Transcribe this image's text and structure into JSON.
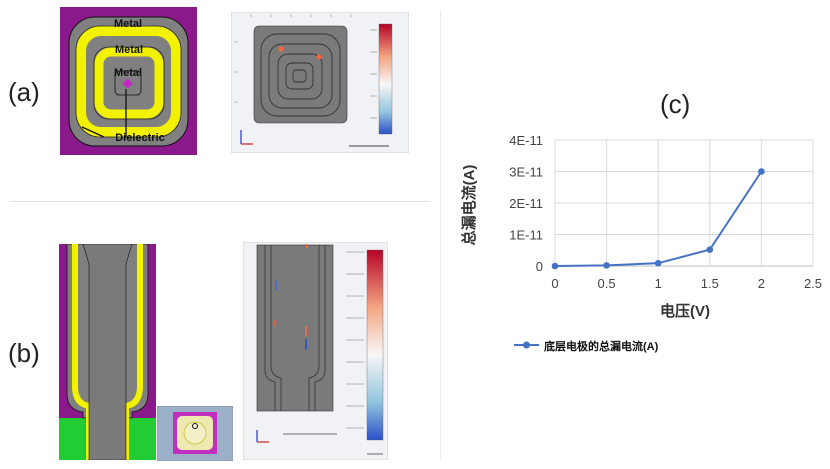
{
  "panels": {
    "a": {
      "label": "(a)",
      "layer_labels": [
        "Metal",
        "Metal",
        "Metal"
      ],
      "dielectric_label": "Dielectric"
    },
    "b": {
      "label": "(b)"
    },
    "c": {
      "label": "(c)"
    }
  },
  "colors": {
    "purple": "#8a1a8c",
    "yellow": "#f2f200",
    "gray": "#808080",
    "green": "#22cc33",
    "series": "#4472c4"
  },
  "chart_data": {
    "type": "line",
    "title": "",
    "xlabel": "电压(V)",
    "ylabel": "总漏电流(A)",
    "xlim": [
      0,
      2.5
    ],
    "ylim": [
      0,
      4e-11
    ],
    "x_ticks": [
      "0",
      "0.5",
      "1",
      "1.5",
      "2",
      "2.5"
    ],
    "y_ticks": [
      "0",
      "1E-11",
      "2E-11",
      "3E-11",
      "4E-11"
    ],
    "grid": true,
    "legend_position": "bottom",
    "series": [
      {
        "name": "底层电极的总漏电流(A)",
        "x": [
          0,
          0.5,
          1,
          1.5,
          2
        ],
        "y": [
          0,
          2e-13,
          9e-13,
          5.2e-12,
          3e-11
        ]
      }
    ]
  }
}
